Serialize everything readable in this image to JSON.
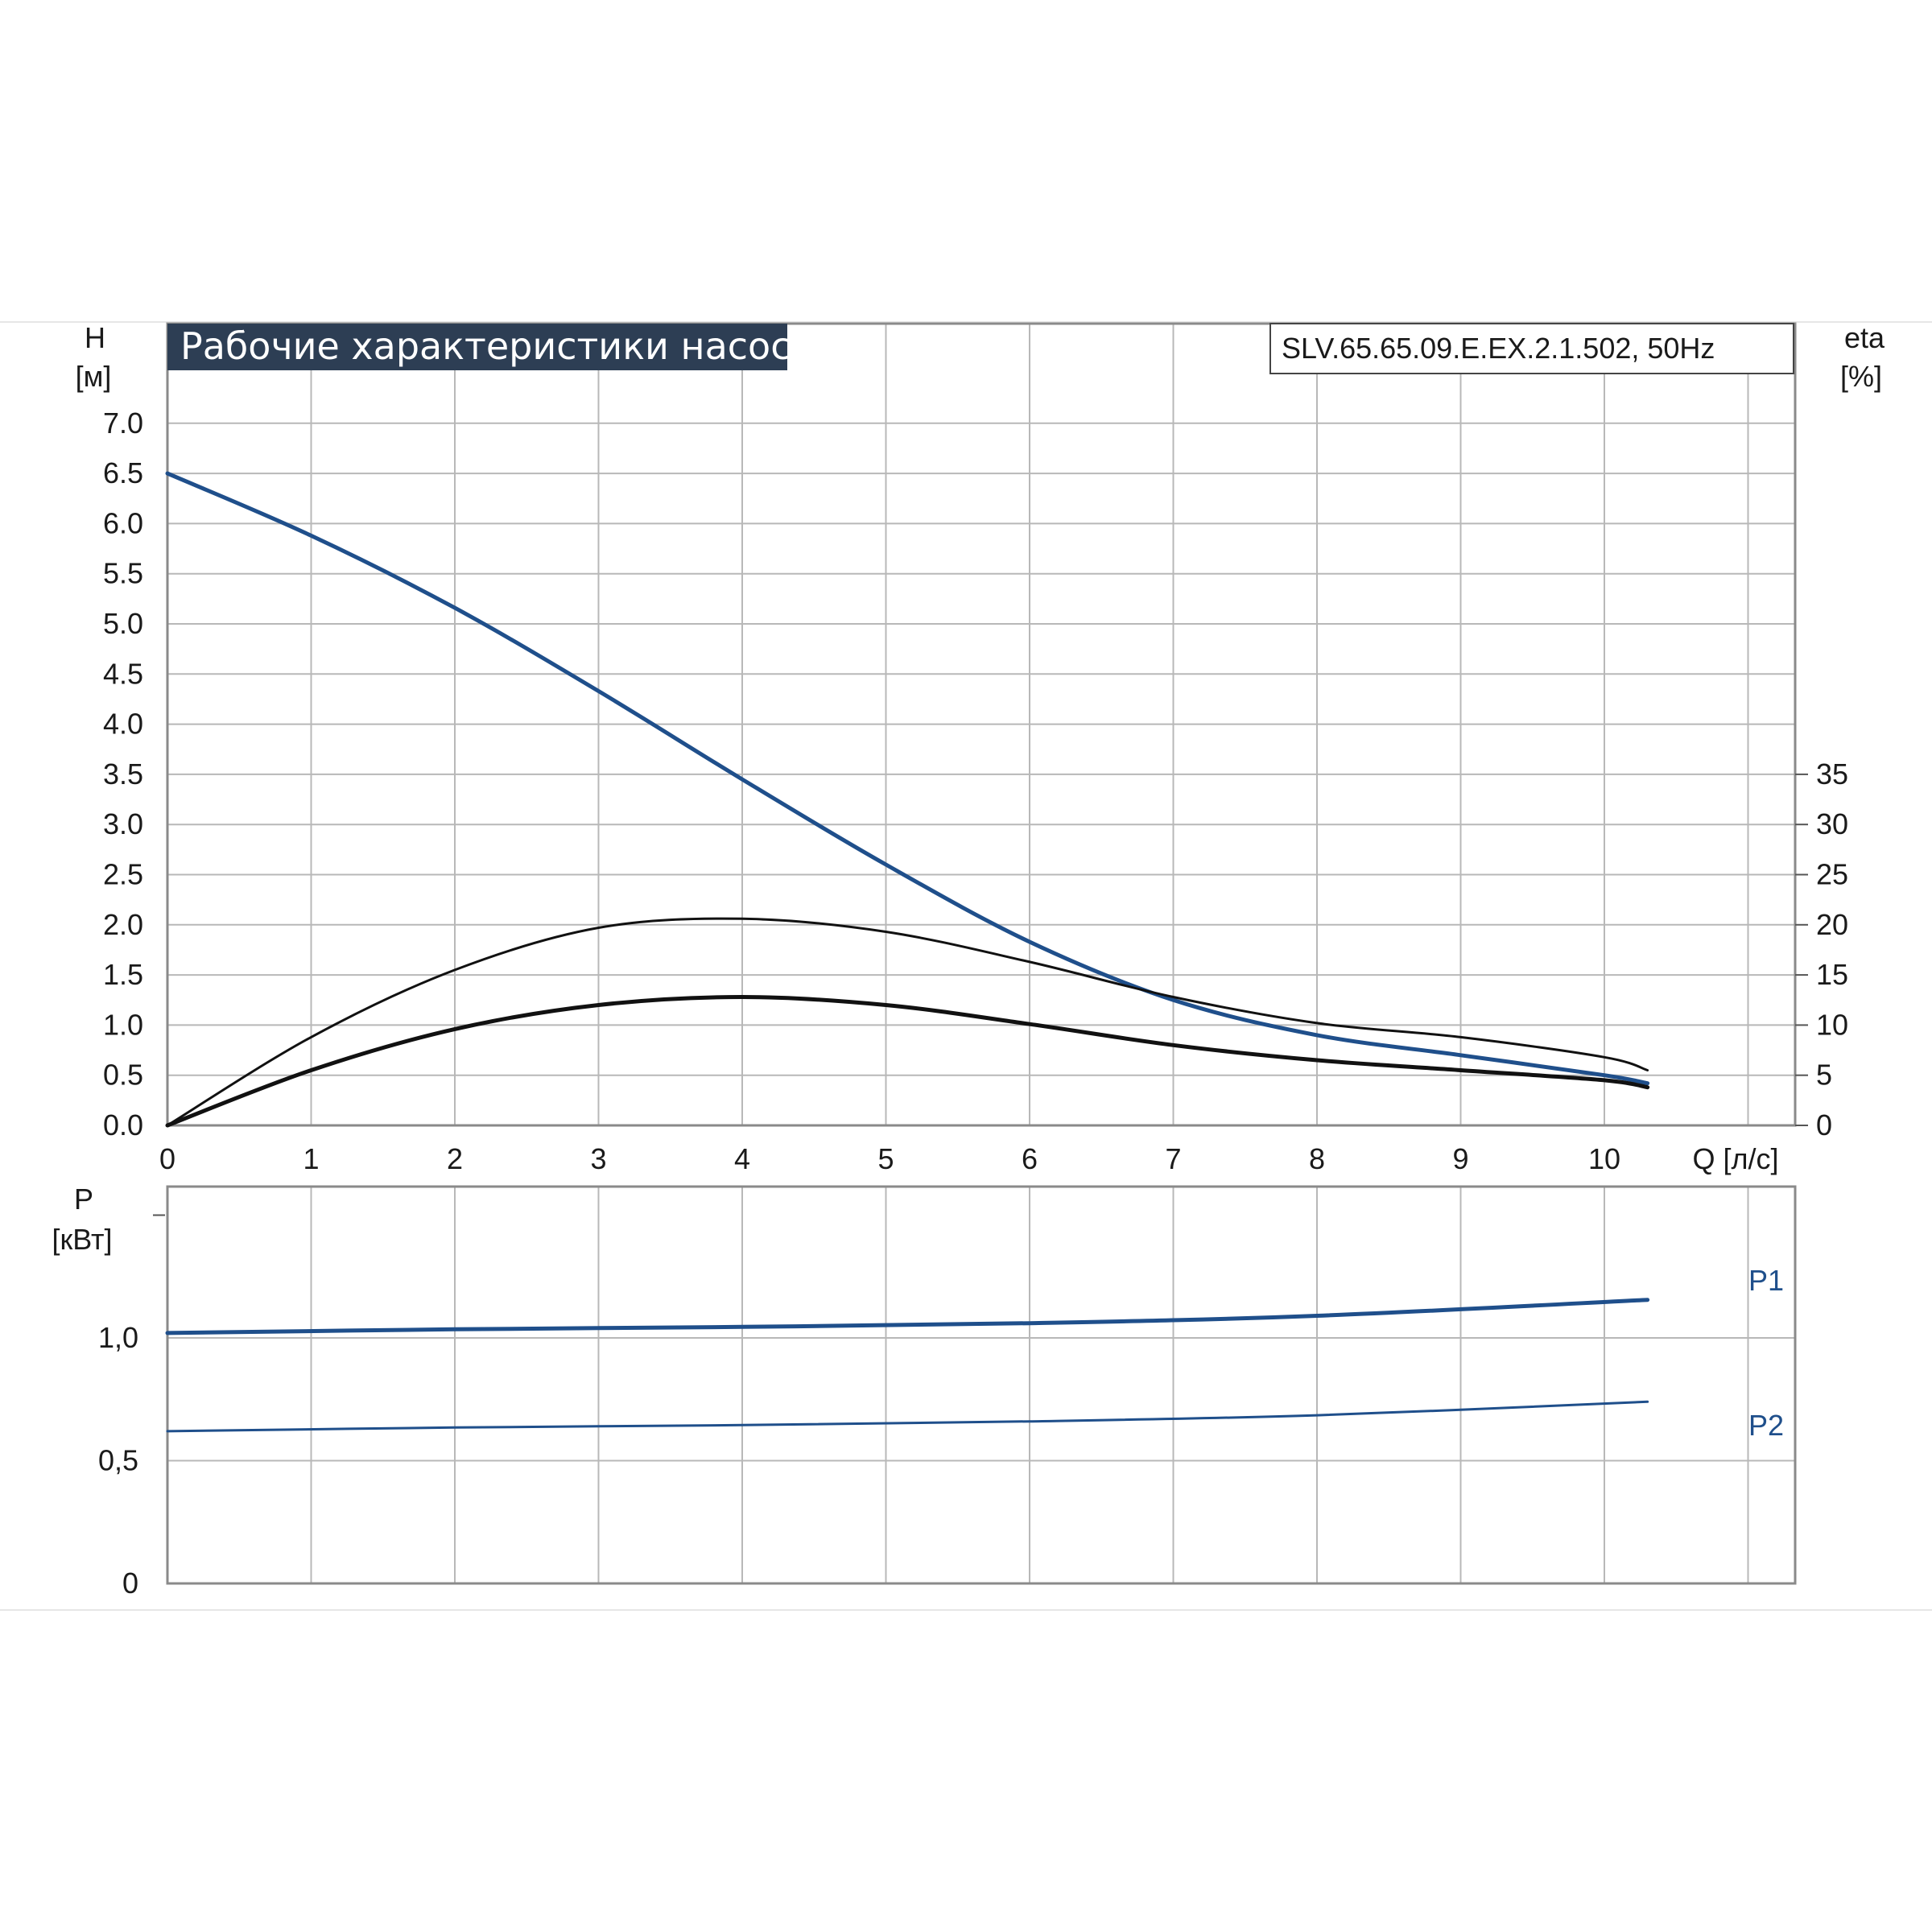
{
  "title": "Рабочие характеристики насоса",
  "model": "SLV.65.65.09.E.EX.2.1.502, 50Hz",
  "colors": {
    "blue": "#1f4f8b",
    "black": "#111111",
    "grid": "#b8b8b8",
    "title_bg": "#2d3e54"
  },
  "chart_data": [
    {
      "type": "line",
      "name": "head-efficiency",
      "xlabel": "Q [л/с]",
      "ylabel_line1": "H",
      "ylabel_line2": "[м]",
      "y2label_line1": "eta",
      "y2label_line2": "[%]",
      "xlim": [
        0,
        11.3
      ],
      "ylim": [
        0,
        7.0
      ],
      "y2lim": [
        0,
        70
      ],
      "grid": true,
      "x_ticks": [
        "0",
        "1",
        "2",
        "3",
        "4",
        "5",
        "6",
        "7",
        "8",
        "9",
        "10"
      ],
      "y_ticks": [
        "0.0",
        "0.5",
        "1.0",
        "1.5",
        "2.0",
        "2.5",
        "3.0",
        "3.5",
        "4.0",
        "4.5",
        "5.0",
        "5.5",
        "6.0",
        "6.5",
        "7.0"
      ],
      "y2_ticks": [
        "0",
        "5",
        "10",
        "15",
        "20",
        "25",
        "30",
        "35"
      ],
      "series": [
        {
          "axis": "left",
          "color": "#1f4f8b",
          "width": 5,
          "x": [
            0,
            1,
            2,
            3,
            4,
            5,
            6,
            7,
            8,
            9,
            10,
            10.3
          ],
          "y": [
            6.5,
            5.88,
            5.16,
            4.33,
            3.45,
            2.6,
            1.83,
            1.25,
            0.9,
            0.7,
            0.5,
            0.42
          ]
        },
        {
          "axis": "right",
          "color": "#111111",
          "width": 3,
          "x": [
            0,
            1,
            2,
            3,
            4,
            5,
            6,
            7,
            8,
            9,
            10,
            10.3
          ],
          "y": [
            0,
            8.8,
            15.5,
            19.7,
            20.6,
            19.3,
            16.3,
            12.8,
            10.2,
            8.8,
            6.8,
            5.5
          ]
        },
        {
          "axis": "left",
          "color": "#111111",
          "width": 5,
          "x": [
            0,
            1,
            2,
            3,
            4,
            5,
            6,
            7,
            8,
            9,
            10,
            10.3
          ],
          "y": [
            0,
            0.55,
            0.96,
            1.2,
            1.28,
            1.2,
            1.01,
            0.8,
            0.65,
            0.55,
            0.45,
            0.38
          ]
        }
      ]
    },
    {
      "type": "line",
      "name": "power",
      "ylabel_line1": "P",
      "ylabel_line2": "[кВт]",
      "xlim": [
        0,
        11.3
      ],
      "ylim": [
        0,
        1.5
      ],
      "grid": true,
      "y_ticks": [
        "0",
        "0,5",
        "1,0"
      ],
      "series": [
        {
          "name": "P1",
          "color": "#1f4f8b",
          "width": 5,
          "x": [
            0,
            2,
            4,
            6,
            8,
            10.3
          ],
          "y": [
            1.02,
            1.035,
            1.045,
            1.06,
            1.09,
            1.155
          ]
        },
        {
          "name": "P2",
          "color": "#1f4f8b",
          "width": 3,
          "x": [
            0,
            2,
            4,
            6,
            8,
            10.3
          ],
          "y": [
            0.62,
            0.635,
            0.645,
            0.66,
            0.685,
            0.74
          ]
        }
      ]
    }
  ]
}
